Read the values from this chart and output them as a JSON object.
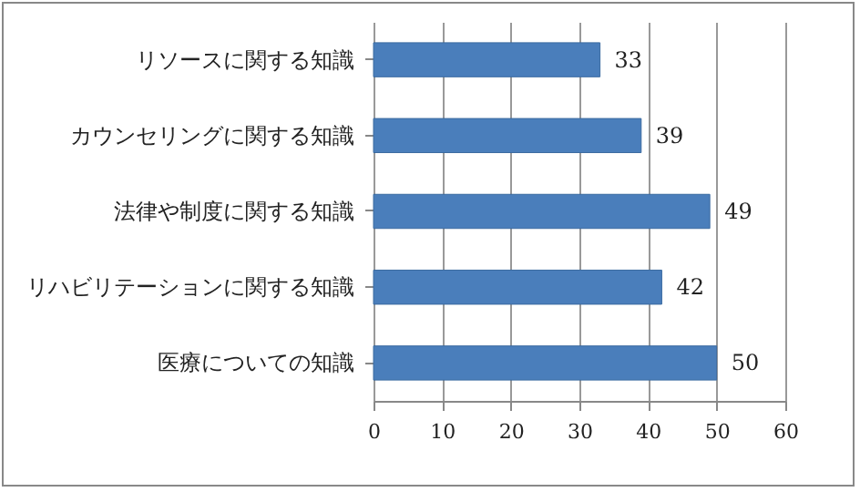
{
  "chart_data": {
    "type": "bar",
    "orientation": "horizontal",
    "categories": [
      "リソースに関する知識",
      "カウンセリングに関する知識",
      "法律や制度に関する知識",
      "リハビリテーションに関する知識",
      "医療についての知識"
    ],
    "values": [
      33,
      39,
      49,
      42,
      50
    ],
    "color": "#4a7ebb",
    "xlim": [
      0,
      60
    ],
    "xticks": [
      0,
      10,
      20,
      30,
      40,
      50,
      60
    ],
    "grid": "x",
    "data_labels": true
  }
}
